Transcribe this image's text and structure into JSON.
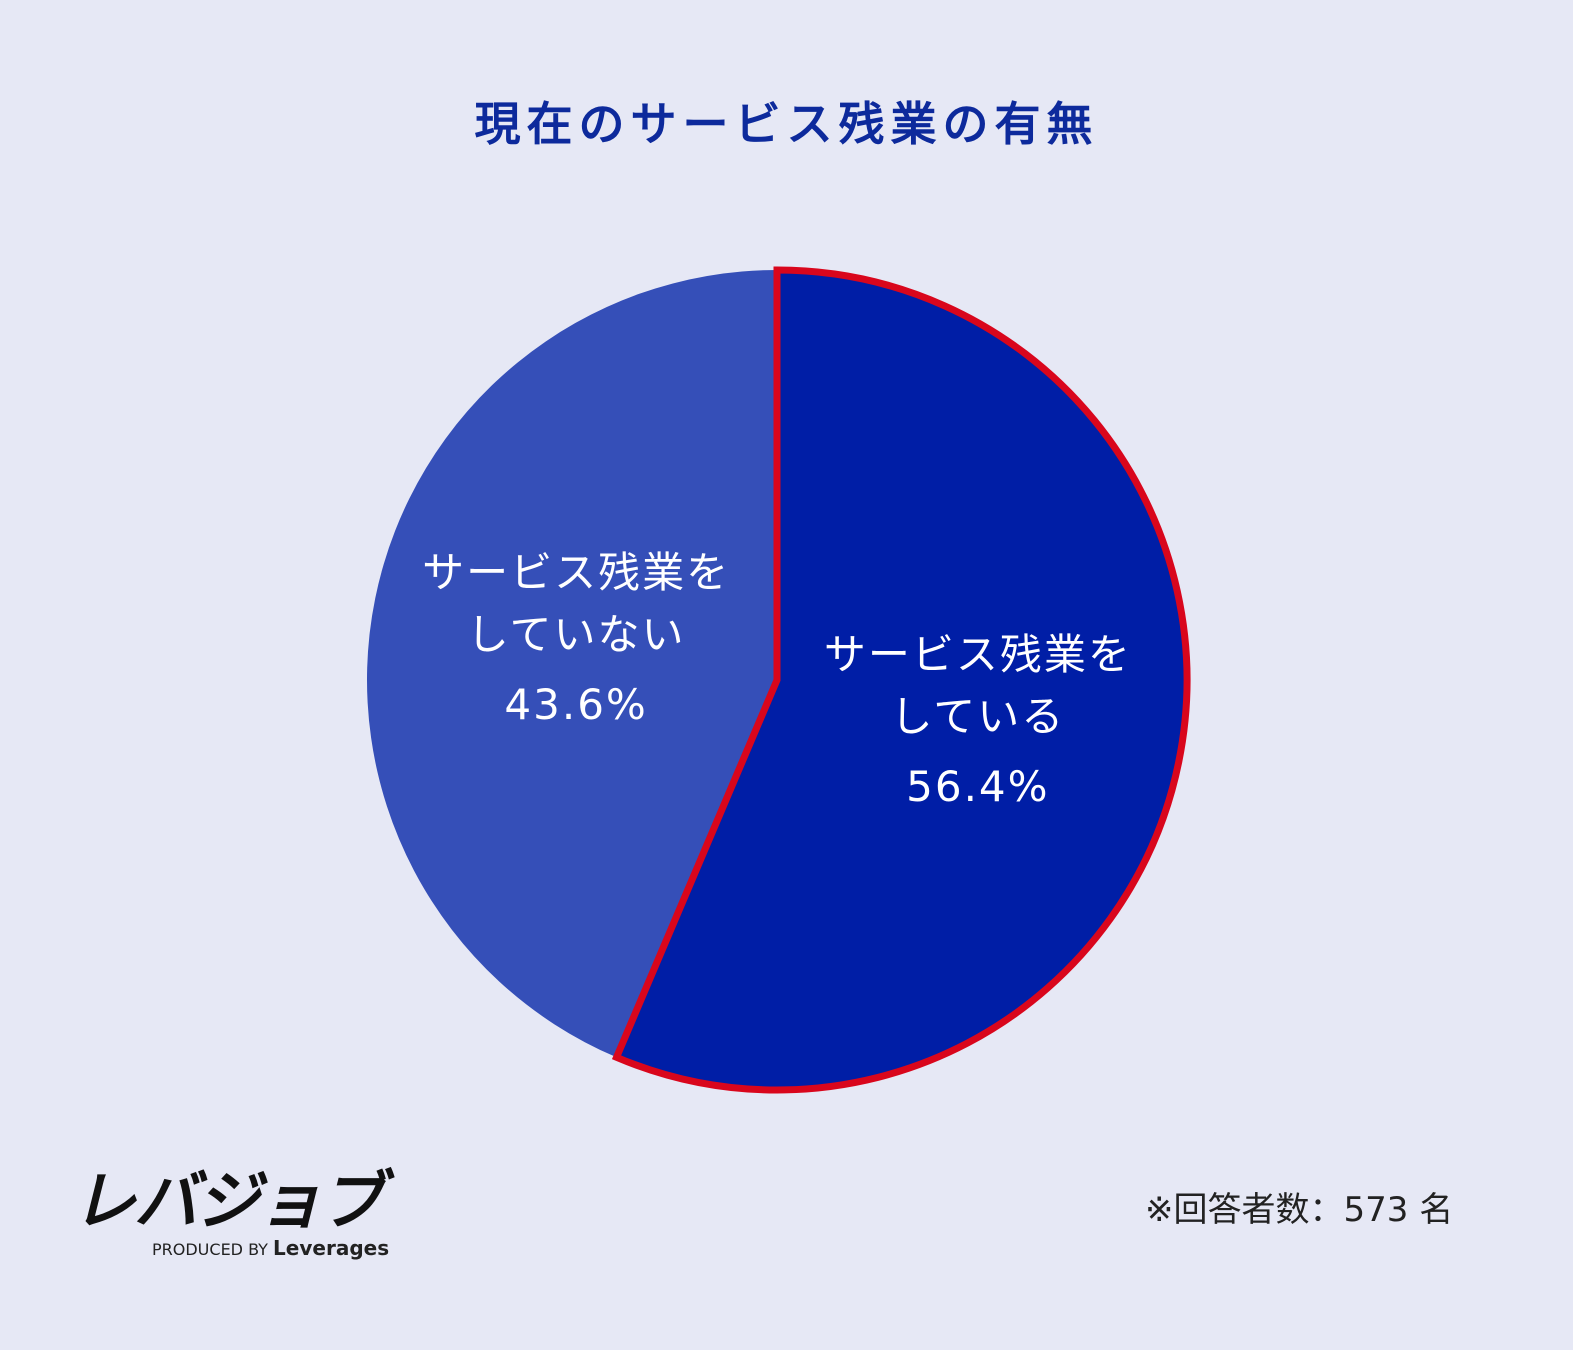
{
  "chart_data": {
    "type": "pie",
    "title": "現在のサービス残業の有無",
    "categories": [
      "サービス残業を\nしている",
      "サービス残業を\nしていない"
    ],
    "values": [
      56.4,
      43.6
    ],
    "value_labels": [
      "56.4%",
      "43.6%"
    ],
    "colors": [
      "#001ea6",
      "#354fb8"
    ],
    "highlight_index": 0,
    "highlight_color": "#d9061c",
    "note": "※回答者数：573 名"
  },
  "logo": {
    "name": "レバジョブ",
    "tagline": "PRODUCED BY",
    "company": "Leverages"
  }
}
